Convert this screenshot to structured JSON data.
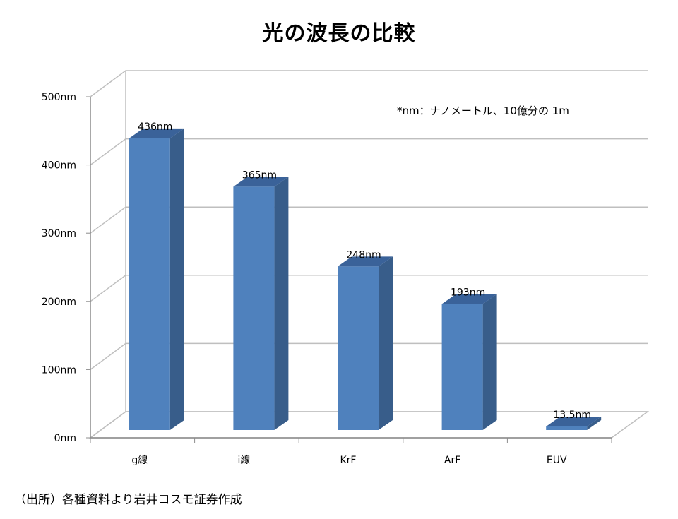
{
  "chart_data": {
    "type": "bar",
    "title": "光の波長の比較",
    "categories": [
      "g線",
      "i線",
      "KrF",
      "ArF",
      "EUV"
    ],
    "values": [
      436,
      365,
      248,
      193,
      13.5
    ],
    "data_labels": [
      "436nm",
      "365nm",
      "248nm",
      "193nm",
      "13.5nm"
    ],
    "y_ticks": [
      {
        "value": 0,
        "label": "0nm"
      },
      {
        "value": 100,
        "label": "100nm"
      },
      {
        "value": 200,
        "label": "200nm"
      },
      {
        "value": 300,
        "label": "300nm"
      },
      {
        "value": 400,
        "label": "400nm"
      },
      {
        "value": 500,
        "label": "500nm"
      }
    ],
    "ylim": [
      0,
      500
    ],
    "grid": true,
    "three_d": true,
    "annotation": "*nm：ナノメートル、10億分の 1m",
    "colors": {
      "bar_front": "#4f81bd",
      "bar_side": "#385d8a",
      "bar_top": "#3a6299",
      "grid": "#bfbfbf",
      "axis": "#8c8c8c"
    }
  },
  "source": "（出所）各種資料より岩井コスモ証券作成"
}
